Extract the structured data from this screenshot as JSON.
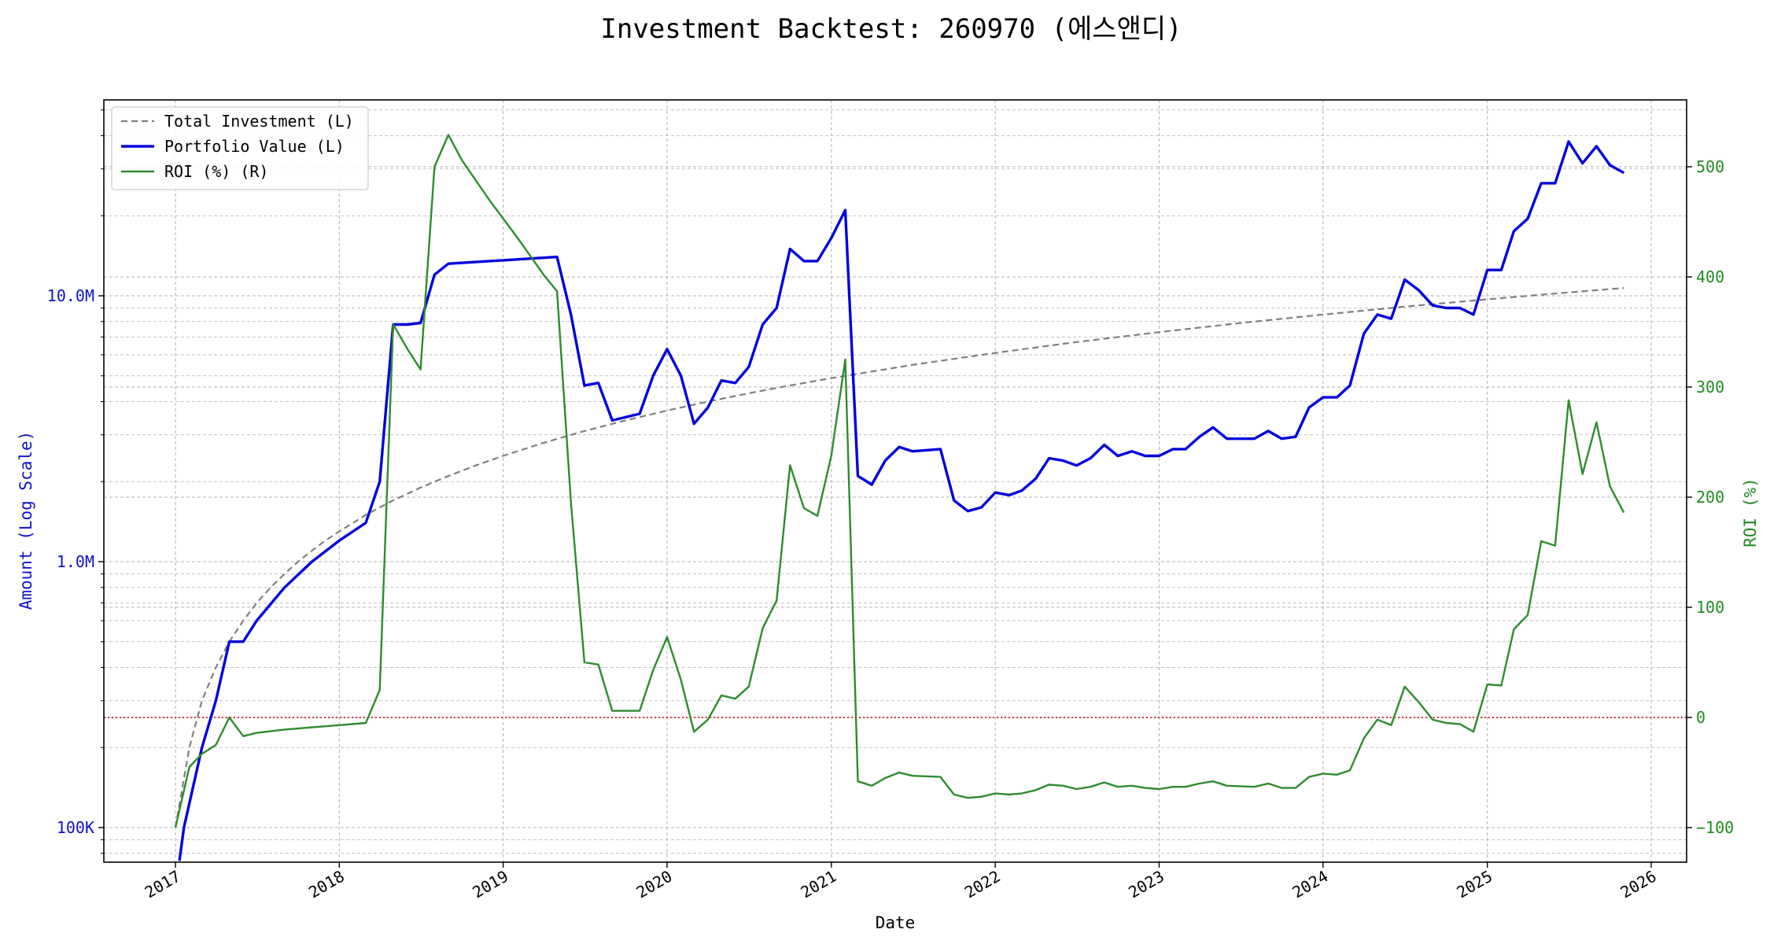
{
  "chart_data": {
    "type": "line",
    "title": "Investment Backtest: 260970 (에스앤디)",
    "xlabel": "Date",
    "ylabel_left": "Amount (Log Scale)",
    "ylabel_right": "ROI (%)",
    "x_ticks": [
      "2017",
      "2018",
      "2019",
      "2020",
      "2021",
      "2022",
      "2023",
      "2024",
      "2025",
      "2026"
    ],
    "y_left_scale": "log",
    "y_left_ticks": [
      {
        "value": 100000,
        "label": "100K"
      },
      {
        "value": 1000000,
        "label": "1.0M"
      },
      {
        "value": 10000000,
        "label": "10.0M"
      }
    ],
    "y_right_ticks": [
      {
        "value": -100,
        "label": "−100"
      },
      {
        "value": 0,
        "label": "0"
      },
      {
        "value": 100,
        "label": "100"
      },
      {
        "value": 200,
        "label": "200"
      },
      {
        "value": 300,
        "label": "300"
      },
      {
        "value": 400,
        "label": "400"
      },
      {
        "value": 500,
        "label": "500"
      }
    ],
    "grid": true,
    "legend_position": "top-left",
    "zero_line": {
      "axis": "right",
      "value": 0,
      "color": "#cc0000",
      "style": "dotted"
    },
    "series": [
      {
        "name": "Total Investment (L)",
        "axis": "left",
        "color": "#7f7f7f",
        "style": "dashed",
        "points": [
          [
            "2017-01-01",
            100000
          ],
          [
            "2017-02-01",
            200000
          ],
          [
            "2017-03-01",
            300000
          ],
          [
            "2017-04-01",
            400000
          ],
          [
            "2017-05-01",
            500000
          ],
          [
            "2017-06-01",
            600000
          ],
          [
            "2017-07-01",
            700000
          ],
          [
            "2017-08-01",
            800000
          ],
          [
            "2017-09-01",
            900000
          ],
          [
            "2017-10-01",
            1000000
          ],
          [
            "2017-11-01",
            1100000
          ],
          [
            "2017-12-01",
            1200000
          ],
          [
            "2018-01-01",
            1300000
          ],
          [
            "2018-02-01",
            1400000
          ],
          [
            "2018-03-01",
            1500000
          ],
          [
            "2018-05-01",
            1700000
          ],
          [
            "2018-07-01",
            1900000
          ],
          [
            "2018-09-01",
            2100000
          ],
          [
            "2018-11-01",
            2300000
          ],
          [
            "2019-01-01",
            2500000
          ],
          [
            "2019-04-01",
            2800000
          ],
          [
            "2019-07-01",
            3100000
          ],
          [
            "2019-10-01",
            3400000
          ],
          [
            "2020-01-01",
            3700000
          ],
          [
            "2020-04-01",
            4000000
          ],
          [
            "2020-07-01",
            4300000
          ],
          [
            "2020-10-01",
            4600000
          ],
          [
            "2021-01-01",
            4900000
          ],
          [
            "2021-07-01",
            5500000
          ],
          [
            "2022-01-01",
            6100000
          ],
          [
            "2022-07-01",
            6700000
          ],
          [
            "2023-01-01",
            7300000
          ],
          [
            "2023-07-01",
            7900000
          ],
          [
            "2024-01-01",
            8500000
          ],
          [
            "2024-07-01",
            9100000
          ],
          [
            "2025-01-01",
            9700000
          ],
          [
            "2025-07-01",
            10300000
          ],
          [
            "2025-11-01",
            10700000
          ]
        ]
      },
      {
        "name": "Portfolio Value (L)",
        "axis": "left",
        "color": "#0000dd",
        "style": "solid",
        "points": [
          [
            "2017-01-10",
            75000
          ],
          [
            "2017-01-20",
            100000
          ],
          [
            "2017-03-01",
            200000
          ],
          [
            "2017-04-01",
            300000
          ],
          [
            "2017-05-01",
            500000
          ],
          [
            "2017-06-01",
            500000
          ],
          [
            "2017-07-01",
            600000
          ],
          [
            "2017-09-01",
            800000
          ],
          [
            "2017-11-01",
            1000000
          ],
          [
            "2018-01-01",
            1200000
          ],
          [
            "2018-03-01",
            1400000
          ],
          [
            "2018-04-01",
            2000000
          ],
          [
            "2018-05-01",
            7800000
          ],
          [
            "2018-06-01",
            7800000
          ],
          [
            "2018-07-01",
            7900000
          ],
          [
            "2018-08-01",
            12000000
          ],
          [
            "2018-09-01",
            13200000
          ],
          [
            "2019-05-01",
            14000000
          ],
          [
            "2019-06-01",
            8500000
          ],
          [
            "2019-07-01",
            4600000
          ],
          [
            "2019-08-01",
            4700000
          ],
          [
            "2019-09-01",
            3400000
          ],
          [
            "2019-11-01",
            3600000
          ],
          [
            "2019-12-01",
            5000000
          ],
          [
            "2020-01-01",
            6300000
          ],
          [
            "2020-02-01",
            5000000
          ],
          [
            "2020-03-01",
            3300000
          ],
          [
            "2020-04-01",
            3800000
          ],
          [
            "2020-05-01",
            4800000
          ],
          [
            "2020-06-01",
            4700000
          ],
          [
            "2020-07-01",
            5400000
          ],
          [
            "2020-08-01",
            7800000
          ],
          [
            "2020-09-01",
            9000000
          ],
          [
            "2020-10-01",
            15000000
          ],
          [
            "2020-11-01",
            13500000
          ],
          [
            "2020-12-01",
            13500000
          ],
          [
            "2021-01-01",
            16500000
          ],
          [
            "2021-02-01",
            21000000
          ],
          [
            "2021-03-01",
            2100000
          ],
          [
            "2021-04-01",
            1950000
          ],
          [
            "2021-05-01",
            2400000
          ],
          [
            "2021-06-01",
            2700000
          ],
          [
            "2021-07-01",
            2600000
          ],
          [
            "2021-09-01",
            2650000
          ],
          [
            "2021-10-01",
            1700000
          ],
          [
            "2021-11-01",
            1550000
          ],
          [
            "2021-12-01",
            1600000
          ],
          [
            "2022-01-01",
            1820000
          ],
          [
            "2022-02-01",
            1780000
          ],
          [
            "2022-03-01",
            1850000
          ],
          [
            "2022-04-01",
            2050000
          ],
          [
            "2022-05-01",
            2450000
          ],
          [
            "2022-06-01",
            2400000
          ],
          [
            "2022-07-01",
            2300000
          ],
          [
            "2022-08-01",
            2450000
          ],
          [
            "2022-09-01",
            2750000
          ],
          [
            "2022-10-01",
            2500000
          ],
          [
            "2022-11-01",
            2600000
          ],
          [
            "2022-12-01",
            2500000
          ],
          [
            "2023-01-01",
            2500000
          ],
          [
            "2023-02-01",
            2650000
          ],
          [
            "2023-03-01",
            2650000
          ],
          [
            "2023-04-01",
            2950000
          ],
          [
            "2023-05-01",
            3200000
          ],
          [
            "2023-06-01",
            2900000
          ],
          [
            "2023-08-01",
            2900000
          ],
          [
            "2023-09-01",
            3100000
          ],
          [
            "2023-10-01",
            2900000
          ],
          [
            "2023-11-01",
            2950000
          ],
          [
            "2023-12-01",
            3800000
          ],
          [
            "2024-01-01",
            4150000
          ],
          [
            "2024-02-01",
            4150000
          ],
          [
            "2024-03-01",
            4600000
          ],
          [
            "2024-04-01",
            7200000
          ],
          [
            "2024-05-01",
            8500000
          ],
          [
            "2024-06-01",
            8200000
          ],
          [
            "2024-07-01",
            11500000
          ],
          [
            "2024-08-01",
            10500000
          ],
          [
            "2024-09-01",
            9200000
          ],
          [
            "2024-10-01",
            9000000
          ],
          [
            "2024-11-01",
            9000000
          ],
          [
            "2024-12-01",
            8500000
          ],
          [
            "2025-01-01",
            12500000
          ],
          [
            "2025-02-01",
            12500000
          ],
          [
            "2025-03-01",
            17500000
          ],
          [
            "2025-04-01",
            19500000
          ],
          [
            "2025-05-01",
            26500000
          ],
          [
            "2025-06-01",
            26500000
          ],
          [
            "2025-07-01",
            38000000
          ],
          [
            "2025-08-01",
            31500000
          ],
          [
            "2025-09-01",
            36500000
          ],
          [
            "2025-10-01",
            31000000
          ],
          [
            "2025-11-01",
            29000000
          ]
        ]
      },
      {
        "name": "ROI (%) (R)",
        "axis": "right",
        "color": "#2e8b2e",
        "style": "solid",
        "points": [
          [
            "2017-01-01",
            -100
          ],
          [
            "2017-02-01",
            -45
          ],
          [
            "2017-03-01",
            -33
          ],
          [
            "2017-04-01",
            -25
          ],
          [
            "2017-05-01",
            0
          ],
          [
            "2017-06-01",
            -17
          ],
          [
            "2017-07-01",
            -14
          ],
          [
            "2017-09-01",
            -11
          ],
          [
            "2017-11-01",
            -9
          ],
          [
            "2018-01-01",
            -7
          ],
          [
            "2018-03-01",
            -5
          ],
          [
            "2018-04-01",
            25
          ],
          [
            "2018-05-01",
            357
          ],
          [
            "2018-06-01",
            335
          ],
          [
            "2018-07-01",
            316
          ],
          [
            "2018-08-01",
            500
          ],
          [
            "2018-09-01",
            529
          ],
          [
            "2018-10-01",
            506
          ],
          [
            "2018-12-01",
            470
          ],
          [
            "2019-02-01",
            436
          ],
          [
            "2019-04-01",
            402
          ],
          [
            "2019-05-01",
            387
          ],
          [
            "2019-06-01",
            195
          ],
          [
            "2019-07-01",
            50
          ],
          [
            "2019-08-01",
            48
          ],
          [
            "2019-09-01",
            6
          ],
          [
            "2019-11-01",
            6
          ],
          [
            "2019-12-01",
            43
          ],
          [
            "2020-01-01",
            73
          ],
          [
            "2020-02-01",
            34
          ],
          [
            "2020-03-01",
            -13
          ],
          [
            "2020-04-01",
            -2
          ],
          [
            "2020-05-01",
            20
          ],
          [
            "2020-06-01",
            17
          ],
          [
            "2020-07-01",
            28
          ],
          [
            "2020-08-01",
            81
          ],
          [
            "2020-09-01",
            106
          ],
          [
            "2020-10-01",
            229
          ],
          [
            "2020-11-01",
            190
          ],
          [
            "2020-12-01",
            183
          ],
          [
            "2021-01-01",
            238
          ],
          [
            "2021-02-01",
            325
          ],
          [
            "2021-03-01",
            -58
          ],
          [
            "2021-04-01",
            -62
          ],
          [
            "2021-05-01",
            -55
          ],
          [
            "2021-06-01",
            -50
          ],
          [
            "2021-07-01",
            -53
          ],
          [
            "2021-09-01",
            -54
          ],
          [
            "2021-10-01",
            -70
          ],
          [
            "2021-11-01",
            -73
          ],
          [
            "2021-12-01",
            -72
          ],
          [
            "2022-01-01",
            -69
          ],
          [
            "2022-02-01",
            -70
          ],
          [
            "2022-03-01",
            -69
          ],
          [
            "2022-04-01",
            -66
          ],
          [
            "2022-05-01",
            -61
          ],
          [
            "2022-06-01",
            -62
          ],
          [
            "2022-07-01",
            -65
          ],
          [
            "2022-08-01",
            -63
          ],
          [
            "2022-09-01",
            -59
          ],
          [
            "2022-10-01",
            -63
          ],
          [
            "2022-11-01",
            -62
          ],
          [
            "2022-12-01",
            -64
          ],
          [
            "2023-01-01",
            -65
          ],
          [
            "2023-02-01",
            -63
          ],
          [
            "2023-03-01",
            -63
          ],
          [
            "2023-04-01",
            -60
          ],
          [
            "2023-05-01",
            -58
          ],
          [
            "2023-06-01",
            -62
          ],
          [
            "2023-08-01",
            -63
          ],
          [
            "2023-09-01",
            -60
          ],
          [
            "2023-10-01",
            -64
          ],
          [
            "2023-11-01",
            -64
          ],
          [
            "2023-12-01",
            -54
          ],
          [
            "2024-01-01",
            -51
          ],
          [
            "2024-02-01",
            -52
          ],
          [
            "2024-03-01",
            -48
          ],
          [
            "2024-04-01",
            -19
          ],
          [
            "2024-05-01",
            -2
          ],
          [
            "2024-06-01",
            -7
          ],
          [
            "2024-07-01",
            28
          ],
          [
            "2024-08-01",
            14
          ],
          [
            "2024-09-01",
            -2
          ],
          [
            "2024-10-01",
            -5
          ],
          [
            "2024-11-01",
            -6
          ],
          [
            "2024-12-01",
            -13
          ],
          [
            "2025-01-01",
            30
          ],
          [
            "2025-02-01",
            29
          ],
          [
            "2025-03-01",
            80
          ],
          [
            "2025-04-01",
            93
          ],
          [
            "2025-05-01",
            160
          ],
          [
            "2025-06-01",
            156
          ],
          [
            "2025-07-01",
            288
          ],
          [
            "2025-08-01",
            221
          ],
          [
            "2025-09-01",
            268
          ],
          [
            "2025-10-01",
            210
          ],
          [
            "2025-11-01",
            186
          ]
        ]
      }
    ],
    "colors": {
      "left_axis": "#1010cc",
      "right_axis": "#1f8b1f",
      "grid": "#b0b0b0"
    }
  }
}
